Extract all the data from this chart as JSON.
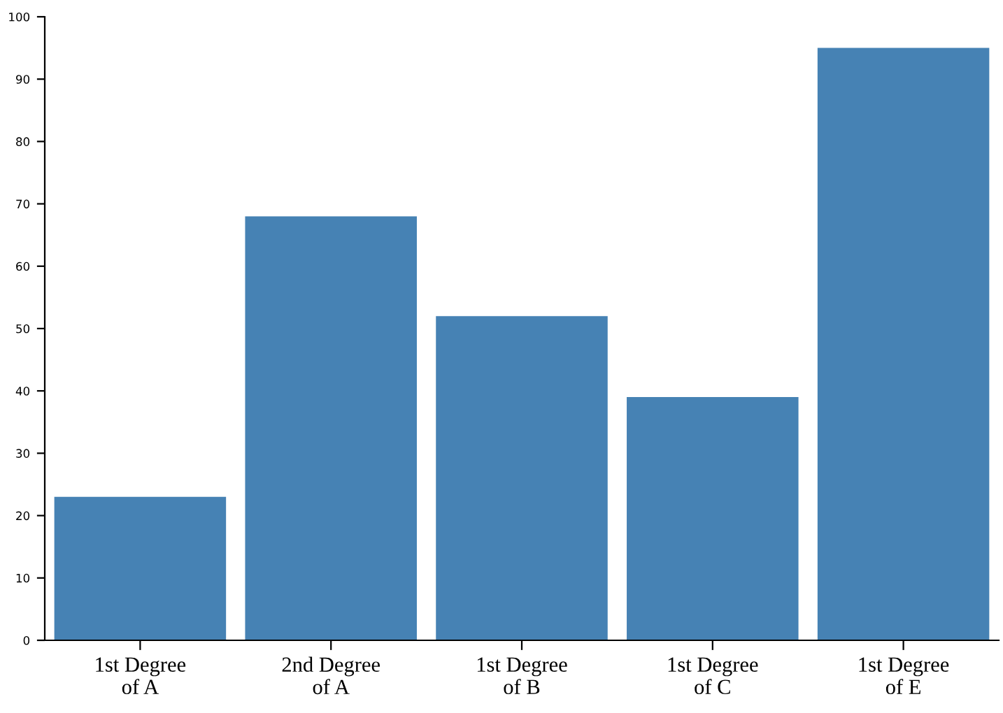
{
  "chart_data": {
    "type": "bar",
    "categories": [
      "1st Degree\nof A",
      "2nd Degree\nof A",
      "1st Degree\nof B",
      "1st Degree\nof C",
      "1st Degree\nof E"
    ],
    "values": [
      23,
      68,
      52,
      39,
      95
    ],
    "color": "#4682b4",
    "ylim": [
      0,
      100
    ],
    "yticks": [
      0,
      10,
      20,
      30,
      40,
      50,
      60,
      70,
      80,
      90,
      100
    ],
    "grid": false,
    "legend": false
  }
}
